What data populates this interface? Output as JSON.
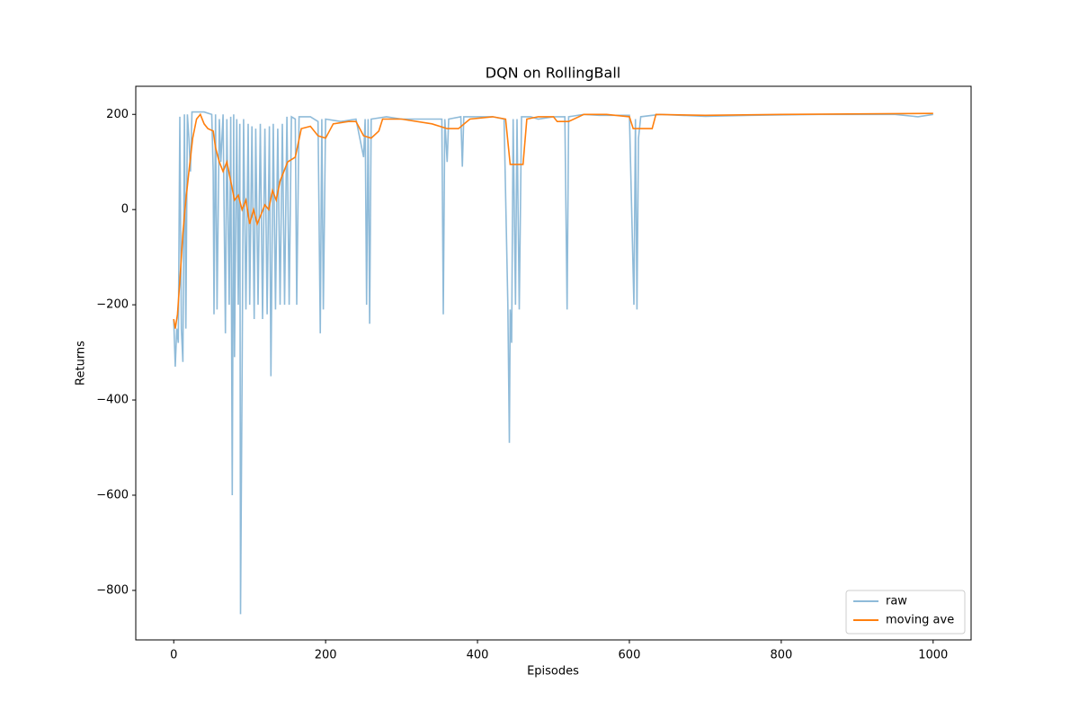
{
  "chart_data": {
    "type": "line",
    "title": "DQN on RollingBall",
    "x_label": "Episodes",
    "y_label": "Returns",
    "xlim": [
      -50,
      1050
    ],
    "ylim": [
      -904,
      259
    ],
    "xticks": [
      0,
      200,
      400,
      600,
      800,
      1000
    ],
    "yticks": [
      {
        "value": -800,
        "label": "−800"
      },
      {
        "value": -600,
        "label": "−600"
      },
      {
        "value": -400,
        "label": "−400"
      },
      {
        "value": -200,
        "label": "−200"
      },
      0,
      200
    ],
    "legend": "lower right",
    "series": [
      {
        "name": "raw",
        "color": "#1f77b4",
        "opacity": 0.5,
        "x": [
          0,
          2,
          4,
          6,
          8,
          10,
          12,
          14,
          16,
          18,
          20,
          22,
          24,
          30,
          40,
          50,
          52,
          53,
          55,
          57,
          60,
          62,
          65,
          68,
          70,
          73,
          75,
          77,
          79,
          80,
          83,
          85,
          87,
          88,
          90,
          92,
          95,
          98,
          100,
          103,
          106,
          108,
          111,
          114,
          117,
          120,
          123,
          126,
          128,
          131,
          134,
          137,
          140,
          143,
          146,
          149,
          152,
          155,
          160,
          162,
          165,
          180,
          190,
          193,
          195,
          197,
          200,
          220,
          240,
          250,
          252,
          254,
          256,
          258,
          260,
          280,
          300,
          320,
          340,
          353,
          355,
          357,
          360,
          362,
          378,
          380,
          382,
          400,
          420,
          435,
          440,
          442,
          443,
          445,
          447,
          450,
          452,
          455,
          458,
          470,
          480,
          500,
          515,
          518,
          520,
          540,
          560,
          600,
          606,
          608,
          610,
          612,
          615,
          640,
          700,
          760,
          850,
          950,
          980,
          1000
        ],
        "values": [
          -230,
          -330,
          -250,
          -280,
          195,
          -250,
          -320,
          200,
          -250,
          200,
          150,
          80,
          205,
          205,
          205,
          200,
          80,
          -220,
          200,
          -210,
          190,
          100,
          200,
          -260,
          190,
          -200,
          195,
          -600,
          200,
          -310,
          190,
          -200,
          180,
          -850,
          -360,
          190,
          -210,
          180,
          -200,
          175,
          -230,
          170,
          -200,
          180,
          -230,
          170,
          -220,
          175,
          -350,
          180,
          -210,
          170,
          -200,
          180,
          -200,
          195,
          -200,
          195,
          190,
          -200,
          195,
          195,
          185,
          -260,
          190,
          -210,
          190,
          185,
          190,
          110,
          190,
          -200,
          190,
          -240,
          190,
          195,
          190,
          190,
          190,
          190,
          -220,
          190,
          100,
          190,
          195,
          90,
          195,
          195,
          195,
          190,
          -200,
          -490,
          -210,
          -280,
          190,
          -200,
          190,
          -210,
          195,
          195,
          190,
          195,
          195,
          -210,
          195,
          200,
          198,
          198,
          -200,
          190,
          -210,
          150,
          195,
          200,
          196,
          198,
          200,
          200,
          195,
          200
        ]
      },
      {
        "name": "moving ave",
        "color": "#ff7f0e",
        "opacity": 1,
        "x": [
          0,
          2,
          5,
          8,
          12,
          16,
          20,
          25,
          30,
          35,
          40,
          45,
          52,
          55,
          60,
          65,
          70,
          75,
          80,
          85,
          90,
          95,
          100,
          105,
          110,
          115,
          120,
          125,
          130,
          135,
          140,
          145,
          150,
          160,
          168,
          180,
          190,
          200,
          210,
          230,
          240,
          250,
          260,
          270,
          275,
          300,
          340,
          360,
          375,
          390,
          420,
          437,
          443,
          460,
          465,
          480,
          500,
          505,
          520,
          540,
          570,
          600,
          605,
          630,
          635,
          700,
          800,
          1000
        ],
        "values": [
          -230,
          -250,
          -220,
          -150,
          -50,
          20,
          80,
          150,
          190,
          200,
          180,
          170,
          165,
          130,
          100,
          80,
          100,
          60,
          20,
          30,
          0,
          20,
          -30,
          0,
          -30,
          -10,
          10,
          0,
          40,
          20,
          60,
          80,
          100,
          110,
          170,
          175,
          155,
          150,
          180,
          185,
          185,
          155,
          150,
          165,
          190,
          190,
          180,
          170,
          170,
          190,
          195,
          190,
          95,
          95,
          190,
          195,
          195,
          185,
          185,
          200,
          200,
          195,
          170,
          170,
          200,
          198,
          200,
          202
        ]
      }
    ]
  }
}
